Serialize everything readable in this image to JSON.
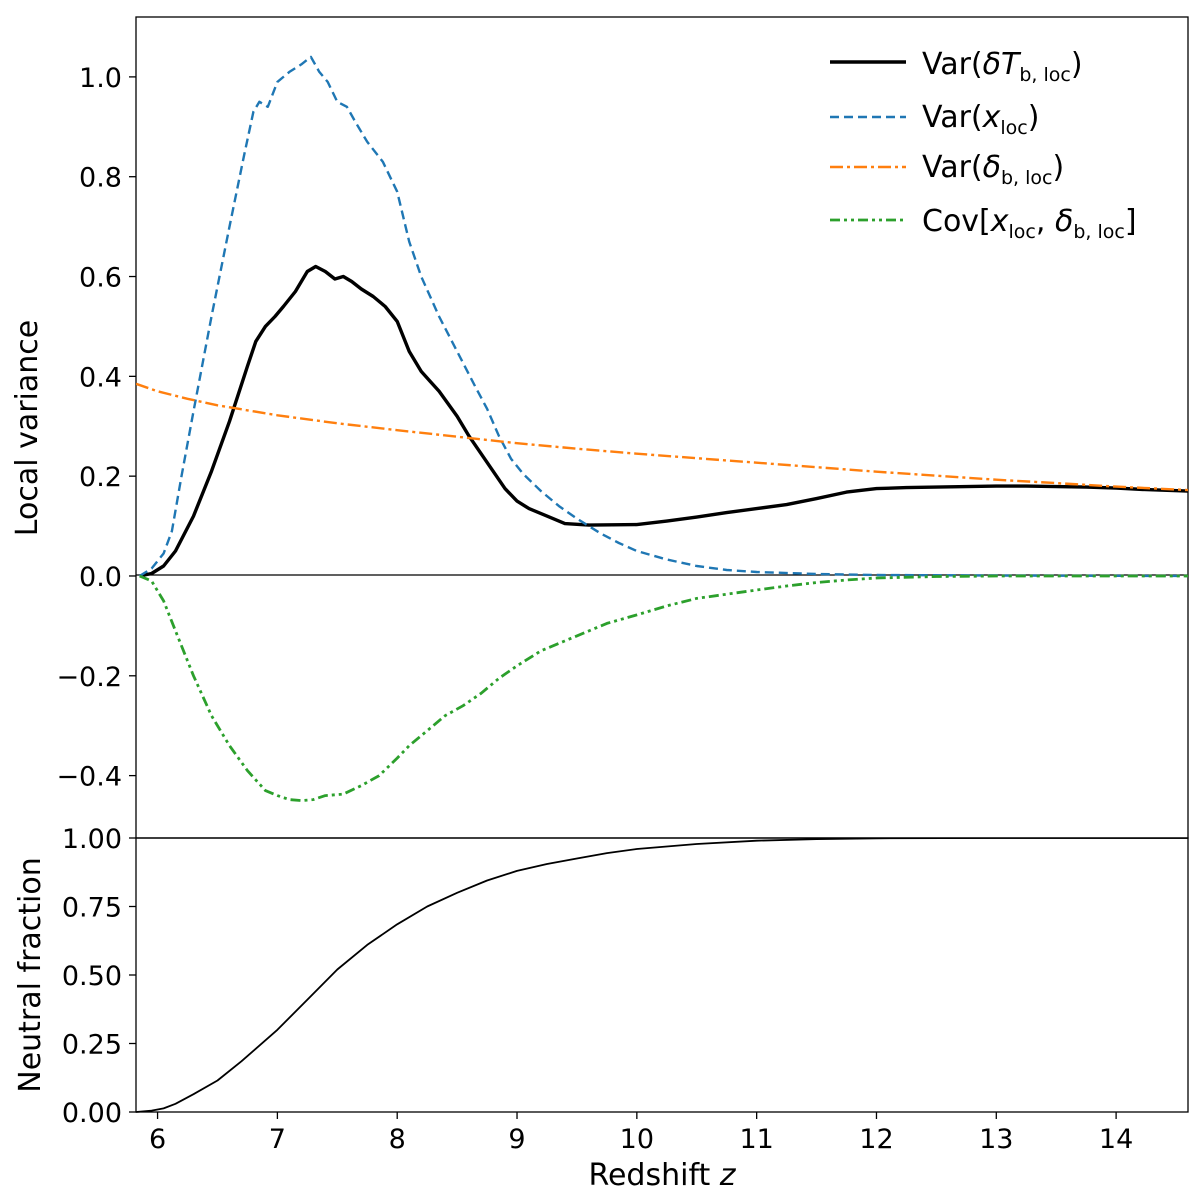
{
  "chart_data": [
    {
      "type": "line",
      "panel": "top",
      "ylabel": "Local variance",
      "xlim": [
        5.82,
        14.6
      ],
      "ylim": [
        -0.525,
        1.12
      ],
      "yticks": [
        -0.4,
        -0.2,
        0.0,
        0.2,
        0.4,
        0.6,
        0.8,
        1.0
      ],
      "ytick_labels": [
        "−0.4",
        "−0.2",
        "0.0",
        "0.2",
        "0.4",
        "0.6",
        "0.8",
        "1.0"
      ],
      "zero_line": true,
      "legend": "top-right",
      "series": [
        {
          "id": "var_dTb",
          "name_main": "Var(",
          "name_sym": "δT",
          "name_sub": "b, loc",
          "name_end": ")",
          "color": "#000000",
          "style": "solid",
          "points": [
            [
              5.85,
              0.0
            ],
            [
              5.95,
              0.005
            ],
            [
              6.05,
              0.02
            ],
            [
              6.15,
              0.05
            ],
            [
              6.3,
              0.12
            ],
            [
              6.45,
              0.21
            ],
            [
              6.6,
              0.31
            ],
            [
              6.75,
              0.42
            ],
            [
              6.82,
              0.47
            ],
            [
              6.9,
              0.5
            ],
            [
              6.98,
              0.52
            ],
            [
              7.05,
              0.54
            ],
            [
              7.15,
              0.57
            ],
            [
              7.25,
              0.61
            ],
            [
              7.32,
              0.62
            ],
            [
              7.4,
              0.61
            ],
            [
              7.48,
              0.595
            ],
            [
              7.55,
              0.6
            ],
            [
              7.62,
              0.59
            ],
            [
              7.7,
              0.575
            ],
            [
              7.8,
              0.56
            ],
            [
              7.9,
              0.54
            ],
            [
              8.0,
              0.51
            ],
            [
              8.1,
              0.45
            ],
            [
              8.2,
              0.41
            ],
            [
              8.35,
              0.37
            ],
            [
              8.5,
              0.32
            ],
            [
              8.6,
              0.28
            ],
            [
              8.7,
              0.245
            ],
            [
              8.8,
              0.21
            ],
            [
              8.9,
              0.175
            ],
            [
              9.0,
              0.15
            ],
            [
              9.1,
              0.135
            ],
            [
              9.25,
              0.12
            ],
            [
              9.4,
              0.105
            ],
            [
              9.6,
              0.102
            ],
            [
              10.0,
              0.103
            ],
            [
              10.25,
              0.11
            ],
            [
              10.5,
              0.118
            ],
            [
              10.75,
              0.127
            ],
            [
              11.0,
              0.135
            ],
            [
              11.25,
              0.143
            ],
            [
              11.5,
              0.155
            ],
            [
              11.75,
              0.168
            ],
            [
              12.0,
              0.175
            ],
            [
              12.25,
              0.177
            ],
            [
              12.5,
              0.178
            ],
            [
              12.75,
              0.179
            ],
            [
              13.0,
              0.18
            ],
            [
              13.25,
              0.18
            ],
            [
              13.5,
              0.179
            ],
            [
              13.75,
              0.178
            ],
            [
              14.0,
              0.176
            ],
            [
              14.25,
              0.173
            ],
            [
              14.6,
              0.17
            ]
          ]
        },
        {
          "id": "var_xloc",
          "name_main": "Var(",
          "name_sym": "x",
          "name_sub": "loc",
          "name_end": ")",
          "color": "#1f77b4",
          "style": "dashed",
          "points": [
            [
              5.85,
              0.0
            ],
            [
              5.95,
              0.015
            ],
            [
              6.05,
              0.045
            ],
            [
              6.12,
              0.09
            ],
            [
              6.2,
              0.2
            ],
            [
              6.3,
              0.33
            ],
            [
              6.45,
              0.52
            ],
            [
              6.6,
              0.7
            ],
            [
              6.72,
              0.84
            ],
            [
              6.8,
              0.93
            ],
            [
              6.85,
              0.95
            ],
            [
              6.92,
              0.94
            ],
            [
              7.0,
              0.99
            ],
            [
              7.1,
              1.01
            ],
            [
              7.2,
              1.025
            ],
            [
              7.28,
              1.04
            ],
            [
              7.35,
              1.01
            ],
            [
              7.42,
              0.99
            ],
            [
              7.5,
              0.95
            ],
            [
              7.58,
              0.94
            ],
            [
              7.65,
              0.91
            ],
            [
              7.75,
              0.87
            ],
            [
              7.88,
              0.83
            ],
            [
              8.0,
              0.77
            ],
            [
              8.1,
              0.67
            ],
            [
              8.2,
              0.6
            ],
            [
              8.35,
              0.52
            ],
            [
              8.5,
              0.45
            ],
            [
              8.65,
              0.38
            ],
            [
              8.75,
              0.335
            ],
            [
              8.85,
              0.28
            ],
            [
              8.95,
              0.235
            ],
            [
              9.05,
              0.205
            ],
            [
              9.2,
              0.17
            ],
            [
              9.35,
              0.14
            ],
            [
              9.5,
              0.115
            ],
            [
              9.7,
              0.085
            ],
            [
              9.85,
              0.066
            ],
            [
              10.0,
              0.05
            ],
            [
              10.25,
              0.033
            ],
            [
              10.5,
              0.02
            ],
            [
              10.75,
              0.012
            ],
            [
              11.0,
              0.008
            ],
            [
              11.5,
              0.004
            ],
            [
              12.0,
              0.002
            ],
            [
              13.0,
              0.001
            ],
            [
              14.6,
              0.0
            ]
          ]
        },
        {
          "id": "var_db",
          "name_main": "Var(",
          "name_sym": "δ",
          "name_sub": "b, loc",
          "name_end": ")",
          "color": "#ff7f0e",
          "style": "dashdot",
          "points": [
            [
              5.82,
              0.385
            ],
            [
              6.0,
              0.37
            ],
            [
              6.25,
              0.355
            ],
            [
              6.5,
              0.342
            ],
            [
              7.0,
              0.322
            ],
            [
              7.5,
              0.306
            ],
            [
              8.0,
              0.292
            ],
            [
              8.5,
              0.279
            ],
            [
              9.0,
              0.266
            ],
            [
              9.5,
              0.255
            ],
            [
              10.0,
              0.245
            ],
            [
              10.5,
              0.236
            ],
            [
              11.0,
              0.227
            ],
            [
              11.5,
              0.218
            ],
            [
              12.0,
              0.209
            ],
            [
              12.5,
              0.201
            ],
            [
              13.0,
              0.193
            ],
            [
              13.5,
              0.186
            ],
            [
              14.0,
              0.179
            ],
            [
              14.6,
              0.172
            ]
          ]
        },
        {
          "id": "cov_x_db",
          "name_main": "Cov[",
          "name_sym": "x",
          "name_sub": "loc",
          "name_mid": ", ",
          "name_sym2": "δ",
          "name_sub2": "b, loc",
          "name_end": "]",
          "color": "#2ca02c",
          "style": "dashdotdot",
          "points": [
            [
              5.85,
              0.0
            ],
            [
              5.95,
              -0.01
            ],
            [
              6.05,
              -0.05
            ],
            [
              6.15,
              -0.11
            ],
            [
              6.3,
              -0.2
            ],
            [
              6.45,
              -0.28
            ],
            [
              6.6,
              -0.34
            ],
            [
              6.75,
              -0.39
            ],
            [
              6.9,
              -0.43
            ],
            [
              7.0,
              -0.44
            ],
            [
              7.1,
              -0.448
            ],
            [
              7.2,
              -0.45
            ],
            [
              7.3,
              -0.448
            ],
            [
              7.4,
              -0.44
            ],
            [
              7.55,
              -0.437
            ],
            [
              7.7,
              -0.42
            ],
            [
              7.85,
              -0.4
            ],
            [
              8.0,
              -0.365
            ],
            [
              8.1,
              -0.34
            ],
            [
              8.25,
              -0.31
            ],
            [
              8.4,
              -0.28
            ],
            [
              8.55,
              -0.26
            ],
            [
              8.7,
              -0.235
            ],
            [
              8.85,
              -0.205
            ],
            [
              9.0,
              -0.18
            ],
            [
              9.2,
              -0.15
            ],
            [
              9.5,
              -0.12
            ],
            [
              9.75,
              -0.095
            ],
            [
              10.0,
              -0.078
            ],
            [
              10.25,
              -0.06
            ],
            [
              10.5,
              -0.045
            ],
            [
              11.0,
              -0.028
            ],
            [
              11.25,
              -0.02
            ],
            [
              11.5,
              -0.013
            ],
            [
              11.75,
              -0.008
            ],
            [
              12.0,
              -0.004
            ],
            [
              12.5,
              -0.001
            ],
            [
              13.0,
              0.0
            ],
            [
              14.6,
              0.0
            ]
          ]
        }
      ]
    },
    {
      "type": "line",
      "panel": "bottom",
      "ylabel": "Neutral fraction",
      "xlabel_main": "Redshift ",
      "xlabel_var": "z",
      "xlim": [
        5.82,
        14.6
      ],
      "ylim": [
        0.0,
        1.0
      ],
      "xticks": [
        6,
        7,
        8,
        9,
        10,
        11,
        12,
        13,
        14
      ],
      "xtick_labels": [
        "6",
        "7",
        "8",
        "9",
        "10",
        "11",
        "12",
        "13",
        "14"
      ],
      "yticks": [
        0.0,
        0.25,
        0.5,
        0.75,
        1.0
      ],
      "ytick_labels": [
        "0.00",
        "0.25",
        "0.50",
        "0.75",
        "1.00"
      ],
      "series": [
        {
          "id": "neutral_fraction",
          "color": "#000000",
          "style": "solid",
          "points": [
            [
              5.82,
              0.0
            ],
            [
              5.95,
              0.005
            ],
            [
              6.05,
              0.013
            ],
            [
              6.15,
              0.03
            ],
            [
              6.3,
              0.065
            ],
            [
              6.5,
              0.115
            ],
            [
              6.7,
              0.185
            ],
            [
              7.0,
              0.3
            ],
            [
              7.25,
              0.41
            ],
            [
              7.5,
              0.52
            ],
            [
              7.75,
              0.61
            ],
            [
              8.0,
              0.685
            ],
            [
              8.25,
              0.75
            ],
            [
              8.5,
              0.8
            ],
            [
              8.75,
              0.845
            ],
            [
              9.0,
              0.88
            ],
            [
              9.25,
              0.905
            ],
            [
              9.5,
              0.925
            ],
            [
              9.75,
              0.945
            ],
            [
              10.0,
              0.96
            ],
            [
              10.5,
              0.978
            ],
            [
              11.0,
              0.99
            ],
            [
              11.5,
              0.996
            ],
            [
              12.0,
              0.999
            ],
            [
              13.0,
              1.0
            ],
            [
              14.6,
              1.0
            ]
          ]
        }
      ]
    }
  ]
}
